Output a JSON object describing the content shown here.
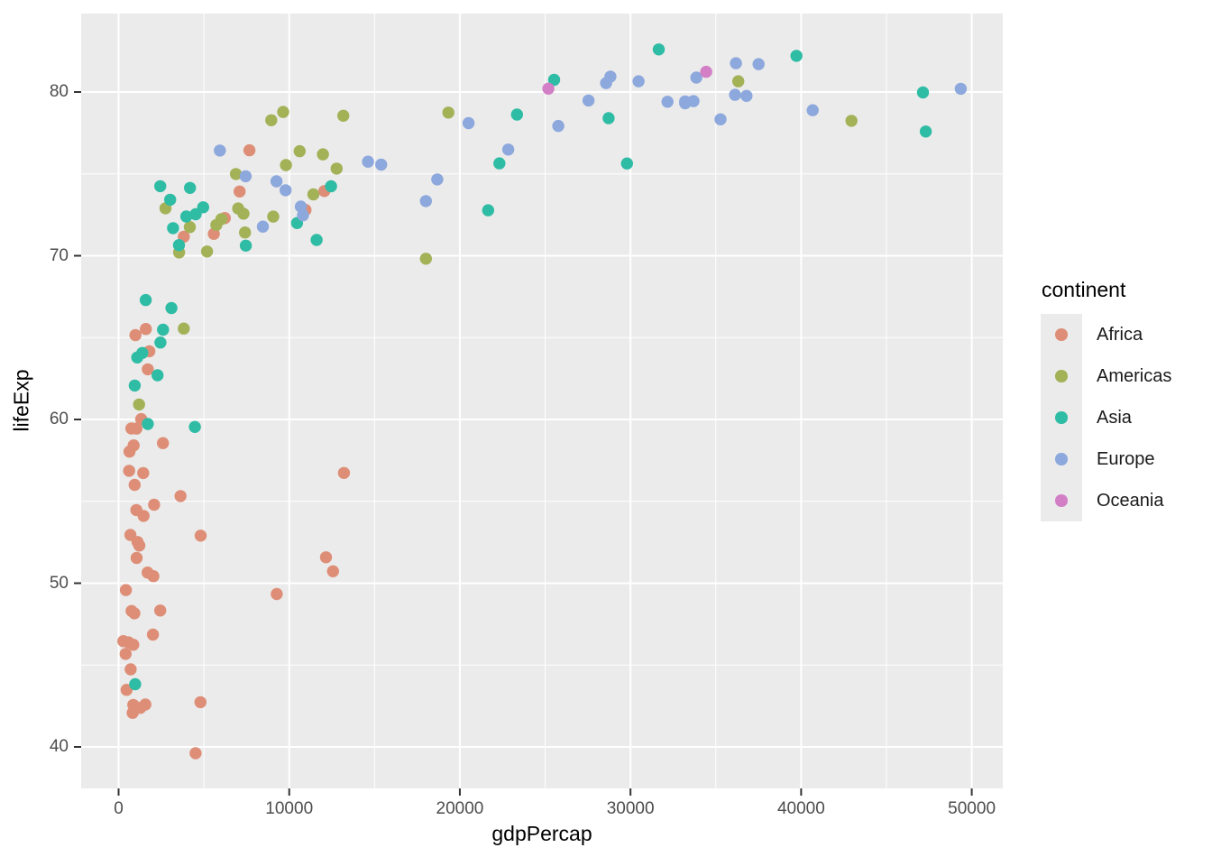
{
  "chart_data": {
    "type": "scatter",
    "title": "",
    "xlabel": "gdpPercap",
    "ylabel": "lifeExp",
    "x_ticks": [
      0,
      10000,
      20000,
      30000,
      40000,
      50000
    ],
    "x_minor_ticks": [
      5000,
      15000,
      25000,
      35000,
      45000
    ],
    "y_ticks": [
      40,
      50,
      60,
      70,
      80
    ],
    "y_minor_ticks": [
      45,
      55,
      65,
      75
    ],
    "xlim": [
      -2176,
      51811
    ],
    "ylim": [
      37.5,
      84.8
    ],
    "grid": "white major and minor gridlines on grey panel",
    "legend_position": "right",
    "legend_title": "continent",
    "series": [
      {
        "name": "Africa",
        "color": "#DE8E77",
        "points": [
          [
            6223.4,
            72.301
          ],
          [
            4797.2,
            42.731
          ],
          [
            1441.3,
            56.728
          ],
          [
            12569.9,
            50.728
          ],
          [
            1217.0,
            52.295
          ],
          [
            430.1,
            49.58
          ],
          [
            2042.1,
            50.43
          ],
          [
            706.0,
            44.741
          ],
          [
            1704.1,
            50.651
          ],
          [
            986.1,
            65.152
          ],
          [
            277.6,
            46.462
          ],
          [
            3632.6,
            55.322
          ],
          [
            2441.6,
            48.328
          ],
          [
            2082.5,
            54.791
          ],
          [
            5581.2,
            71.338
          ],
          [
            12154.1,
            51.579
          ],
          [
            641.4,
            58.04
          ],
          [
            690.8,
            52.947
          ],
          [
            13206.5,
            56.735
          ],
          [
            752.7,
            59.448
          ],
          [
            1327.6,
            60.022
          ],
          [
            942.7,
            56.007
          ],
          [
            579.2,
            46.388
          ],
          [
            1463.2,
            54.11
          ],
          [
            1569.3,
            42.592
          ],
          [
            414.5,
            45.678
          ],
          [
            12057.5,
            73.952
          ],
          [
            1044.8,
            59.443
          ],
          [
            759.3,
            48.303
          ],
          [
            1042.6,
            54.467
          ],
          [
            1803.2,
            64.164
          ],
          [
            10957.0,
            72.801
          ],
          [
            3820.2,
            71.164
          ],
          [
            823.7,
            42.082
          ],
          [
            4811.1,
            52.906
          ],
          [
            619.7,
            56.867
          ],
          [
            2014.0,
            46.859
          ],
          [
            7670.1,
            76.442
          ],
          [
            863.1,
            46.242
          ],
          [
            1598.4,
            65.528
          ],
          [
            1712.5,
            63.062
          ],
          [
            862.5,
            42.568
          ],
          [
            926.1,
            48.159
          ],
          [
            9269.7,
            49.339
          ],
          [
            2602.4,
            58.556
          ],
          [
            4513.5,
            39.613
          ],
          [
            1107.5,
            52.517
          ],
          [
            883.0,
            58.42
          ],
          [
            7092.9,
            73.923
          ],
          [
            1056.4,
            51.542
          ],
          [
            1271.2,
            42.384
          ],
          [
            469.7,
            43.487
          ]
        ]
      },
      {
        "name": "Americas",
        "color": "#A3B157",
        "points": [
          [
            12779.4,
            75.32
          ],
          [
            3822.1,
            65.554
          ],
          [
            9065.8,
            72.39
          ],
          [
            36319.2,
            80.653
          ],
          [
            13171.6,
            78.553
          ],
          [
            7006.6,
            72.889
          ],
          [
            9645.1,
            78.782
          ],
          [
            8948.1,
            78.273
          ],
          [
            6025.4,
            72.235
          ],
          [
            6873.3,
            74.994
          ],
          [
            5728.4,
            71.878
          ],
          [
            5186.1,
            70.259
          ],
          [
            1201.6,
            60.916
          ],
          [
            3548.3,
            70.198
          ],
          [
            7320.9,
            72.567
          ],
          [
            11977.6,
            76.195
          ],
          [
            2749.3,
            72.899
          ],
          [
            9809.2,
            75.537
          ],
          [
            4172.8,
            71.752
          ],
          [
            7408.9,
            71.421
          ],
          [
            19328.7,
            78.746
          ],
          [
            18008.5,
            69.819
          ],
          [
            42951.7,
            78.242
          ],
          [
            10611.5,
            76.384
          ],
          [
            11415.8,
            73.747
          ]
        ]
      },
      {
        "name": "Asia",
        "color": "#2FBCA5",
        "points": [
          [
            974.6,
            43.828
          ],
          [
            29796.0,
            75.635
          ],
          [
            1391.3,
            64.062
          ],
          [
            1713.8,
            59.723
          ],
          [
            4959.1,
            72.961
          ],
          [
            39725.0,
            82.208
          ],
          [
            2452.2,
            64.698
          ],
          [
            3540.7,
            70.65
          ],
          [
            11605.7,
            70.964
          ],
          [
            4471.1,
            59.545
          ],
          [
            25523.3,
            80.745
          ],
          [
            31656.1,
            82.603
          ],
          [
            4519.5,
            72.535
          ],
          [
            1593.1,
            67.297
          ],
          [
            23348.1,
            78.623
          ],
          [
            47307.0,
            77.588
          ],
          [
            10461.1,
            71.993
          ],
          [
            12451.7,
            74.241
          ],
          [
            3095.8,
            66.803
          ],
          [
            944.0,
            62.069
          ],
          [
            1091.4,
            63.785
          ],
          [
            22316.2,
            75.64
          ],
          [
            2606.0,
            65.483
          ],
          [
            3190.5,
            71.688
          ],
          [
            21654.8,
            72.777
          ],
          [
            47143.2,
            79.972
          ],
          [
            3970.1,
            72.396
          ],
          [
            4184.1,
            74.143
          ],
          [
            28718.3,
            78.4
          ],
          [
            7458.4,
            70.616
          ],
          [
            2441.6,
            74.249
          ],
          [
            3025.3,
            73.422
          ],
          [
            2280.8,
            62.698
          ]
        ]
      },
      {
        "name": "Europe",
        "color": "#8CA8DC",
        "points": [
          [
            5937.0,
            76.423
          ],
          [
            36126.5,
            79.829
          ],
          [
            33692.6,
            79.441
          ],
          [
            7446.3,
            74.852
          ],
          [
            10680.8,
            73.005
          ],
          [
            14619.2,
            75.748
          ],
          [
            22833.3,
            76.486
          ],
          [
            35278.4,
            78.332
          ],
          [
            33207.1,
            79.313
          ],
          [
            30470.0,
            80.657
          ],
          [
            32170.4,
            79.406
          ],
          [
            27538.4,
            79.483
          ],
          [
            18008.9,
            73.338
          ],
          [
            36180.8,
            81.757
          ],
          [
            40676.0,
            78.885
          ],
          [
            28569.7,
            80.546
          ],
          [
            9253.9,
            74.543
          ],
          [
            36797.9,
            79.762
          ],
          [
            49357.2,
            80.196
          ],
          [
            15389.9,
            75.563
          ],
          [
            20509.6,
            78.098
          ],
          [
            10808.5,
            72.476
          ],
          [
            9786.5,
            74.002
          ],
          [
            18678.3,
            74.663
          ],
          [
            25768.3,
            77.926
          ],
          [
            28821.1,
            80.941
          ],
          [
            33859.7,
            80.884
          ],
          [
            37506.4,
            81.701
          ],
          [
            8458.3,
            71.777
          ],
          [
            33203.3,
            79.425
          ]
        ]
      },
      {
        "name": "Oceania",
        "color": "#D27FC6",
        "points": [
          [
            34435.4,
            81.235
          ],
          [
            25185.0,
            80.204
          ]
        ]
      }
    ]
  },
  "styles": {
    "panel_bg": "#EBEBEB",
    "grid_color": "#FFFFFF",
    "tick_mark_color": "#333333",
    "tick_label_color": "#4D4D4D",
    "axis_title_color": "#000000",
    "legend_key_bg": "#EBEBEB"
  }
}
